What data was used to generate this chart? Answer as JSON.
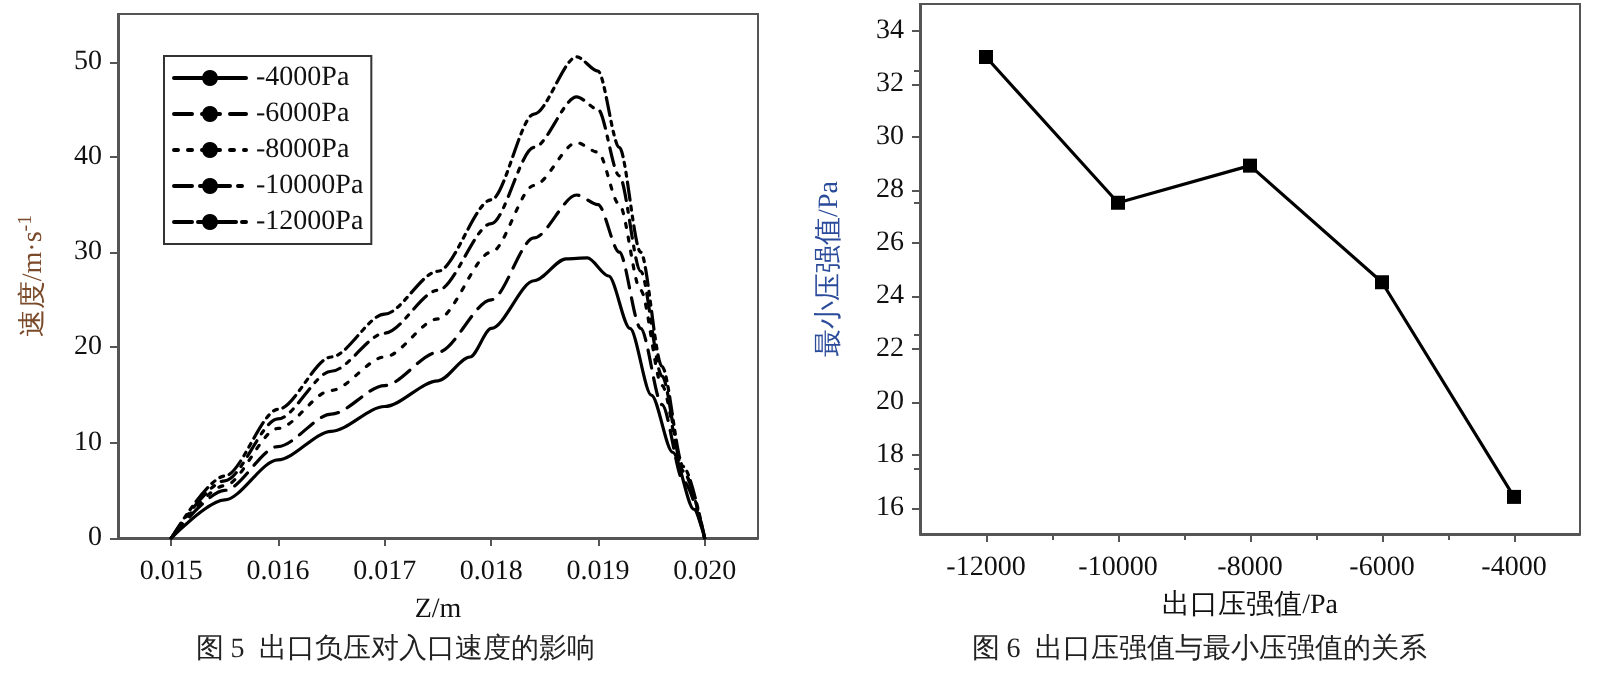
{
  "chart_data": [
    {
      "type": "line",
      "xlabel": "Z/m",
      "ylabel": "速度/m·s$^{-1}$",
      "annotations": [
        "图 5  出口负压对入口速度的影响"
      ],
      "xlim": [
        0.0145,
        0.0205
      ],
      "xticks": [
        0.015,
        0.016,
        0.017,
        0.018,
        0.019,
        {
          "value": 0.02,
          "label": "0.020"
        }
      ],
      "ylim": [
        0,
        55
      ],
      "yticks": [
        0,
        10,
        20,
        30,
        40,
        50
      ],
      "legend": "top left",
      "marker": "none",
      "grid": false,
      "series": [
        {
          "name": "-4000Pa",
          "color": "#000000",
          "line_style": "solid",
          "x": [
            0.015,
            0.0155,
            0.016,
            0.0165,
            0.017,
            0.0175,
            0.0178,
            0.018,
            0.0184,
            0.0187,
            0.0189,
            0.0191,
            0.0193,
            0.0195,
            0.0197,
            0.0199,
            0.02
          ],
          "values": [
            0,
            4,
            8.2,
            11.2,
            13.8,
            16.5,
            19,
            22,
            27,
            29.3,
            29.4,
            27.5,
            22,
            15,
            9,
            3,
            0
          ]
        },
        {
          "name": "-6000Pa",
          "color": "#000000",
          "line_style": "dashed",
          "x": [
            0.015,
            0.0155,
            0.016,
            0.0165,
            0.017,
            0.0175,
            0.018,
            0.0184,
            0.0188,
            0.019,
            0.0192,
            0.0194,
            0.0196,
            0.0198,
            0.02
          ],
          "values": [
            0,
            5,
            9.6,
            13,
            16,
            19.5,
            25,
            31.5,
            36,
            35,
            30,
            22,
            14,
            6,
            0
          ]
        },
        {
          "name": "-8000Pa",
          "color": "#000000",
          "line_style": "dotted",
          "x": [
            0.015,
            0.0155,
            0.016,
            0.0165,
            0.017,
            0.0175,
            0.018,
            0.0184,
            0.0188,
            0.019,
            0.0192,
            0.0194,
            0.0196,
            0.0198,
            0.02
          ],
          "values": [
            0,
            5.5,
            11.5,
            15.5,
            19,
            23,
            30,
            37,
            41.5,
            40.5,
            35,
            26,
            16,
            7,
            0
          ]
        },
        {
          "name": "-10000Pa",
          "color": "#000000",
          "line_style": "dashdot",
          "x": [
            0.015,
            0.0155,
            0.016,
            0.0165,
            0.017,
            0.0175,
            0.018,
            0.0184,
            0.0188,
            0.019,
            0.0192,
            0.0194,
            0.0196,
            0.0198,
            0.02
          ],
          "values": [
            0,
            6,
            12.5,
            17.5,
            21.5,
            26,
            33,
            41,
            46.3,
            45,
            38,
            28,
            17,
            7,
            0
          ]
        },
        {
          "name": "-12000Pa",
          "color": "#000000",
          "line_style": "dashdotdot",
          "x": [
            0.015,
            0.0155,
            0.016,
            0.0165,
            0.017,
            0.0175,
            0.018,
            0.0184,
            0.0188,
            0.019,
            0.0192,
            0.0194,
            0.0196,
            0.0198,
            0.02
          ],
          "values": [
            0,
            6.5,
            13.5,
            19,
            23.5,
            28,
            35.5,
            44.5,
            50.5,
            49,
            41,
            30,
            18,
            7.5,
            0
          ]
        }
      ]
    },
    {
      "type": "line",
      "xlabel": "出口压强值/Pa",
      "ylabel": "最小压强值/Pa",
      "annotations": [
        "图 6  出口压强值与最小压强值的关系"
      ],
      "xlim": [
        -13000,
        -3000
      ],
      "xticks": [
        -12000,
        -10000,
        -8000,
        -6000,
        -4000
      ],
      "ylim": [
        15,
        35
      ],
      "yticks": [
        16,
        18,
        20,
        22,
        24,
        26,
        28,
        30,
        32,
        34
      ],
      "legend": false,
      "marker": "square",
      "grid": false,
      "series": [
        {
          "color": "#000000",
          "line_style": "solid",
          "x": [
            -12000,
            -10000,
            -8000,
            -6000,
            -4000
          ],
          "values": [
            33,
            27.5,
            28.9,
            24.5,
            16.4
          ]
        }
      ]
    }
  ]
}
